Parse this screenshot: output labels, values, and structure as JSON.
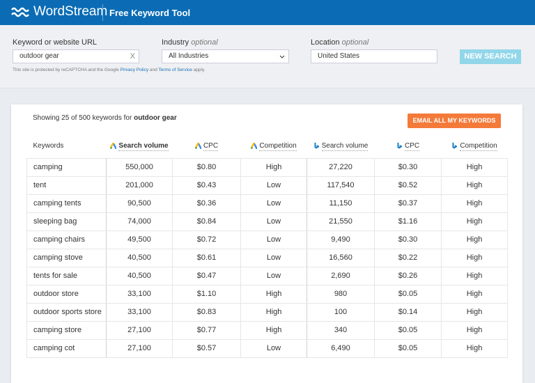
{
  "header": {
    "brand": "WordStream",
    "tool": "Free Keyword Tool"
  },
  "search": {
    "keyword_label": "Keyword or website URL",
    "keyword_value": "outdoor gear",
    "clear": "X",
    "industry_label": "Industry",
    "industry_optional": "optional",
    "industry_value": "All Industries",
    "location_label": "Location",
    "location_optional": "optional",
    "location_value": "United States",
    "button": "NEW SEARCH",
    "notice": [
      "This site is protected by reCAPTCHA and the Google",
      "Privacy Policy",
      "and",
      "Terms of Service",
      "apply."
    ]
  },
  "results": {
    "summary": "Showing 25 of 500 keywords for",
    "query": "outdoor gear",
    "email_button": "EMAIL ALL MY KEYWORDS",
    "table": {
      "columns": [
        "Keywords",
        "Search volume",
        "CPC",
        "Competition",
        "Search volume",
        "CPC",
        "Competition"
      ],
      "rows": [
        [
          "camping",
          "550,000",
          "$0.80",
          "High",
          "27,220",
          "$0.30",
          "High"
        ],
        [
          "tent",
          "201,000",
          "$0.43",
          "Low",
          "117,540",
          "$0.52",
          "High"
        ],
        [
          "camping tents",
          "90,500",
          "$0.36",
          "Low",
          "11,150",
          "$0.37",
          "High"
        ],
        [
          "sleeping bag",
          "74,000",
          "$0.84",
          "Low",
          "21,550",
          "$1.16",
          "High"
        ],
        [
          "camping chairs",
          "49,500",
          "$0.72",
          "Low",
          "9,490",
          "$0.30",
          "High"
        ],
        [
          "camping stove",
          "40,500",
          "$0.61",
          "Low",
          "16,560",
          "$0.22",
          "High"
        ],
        [
          "tents for sale",
          "40,500",
          "$0.47",
          "Low",
          "2,690",
          "$0.26",
          "High"
        ],
        [
          "outdoor store",
          "33,100",
          "$1.10",
          "High",
          "980",
          "$0.05",
          "High"
        ],
        [
          "outdoor sports store",
          "33,100",
          "$0.83",
          "High",
          "100",
          "$0.14",
          "High"
        ],
        [
          "camping store",
          "27,100",
          "$0.77",
          "High",
          "340",
          "$0.05",
          "High"
        ],
        [
          "camping cot",
          "27,100",
          "$0.57",
          "Low",
          "6,490",
          "$0.05",
          "High"
        ]
      ]
    }
  }
}
